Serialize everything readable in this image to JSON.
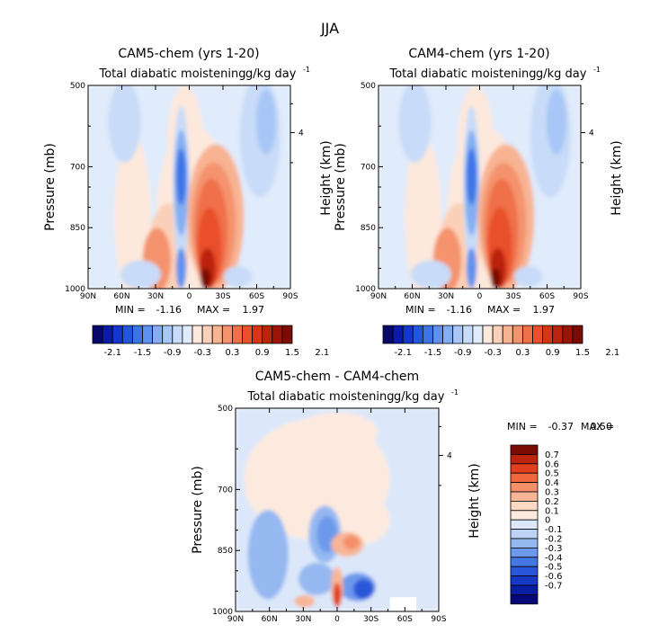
{
  "figure": {
    "title": "JJA"
  },
  "chart_data": [
    {
      "type": "heatmap",
      "title": "CAM5-chem (yrs 1-20)",
      "subtitle": "Total diabatic moistening",
      "units": "g/kg day",
      "units_exp": "-1",
      "xlabel": "",
      "ylabel": "Pressure (mb)",
      "y2label": "Height (km)",
      "xticks": [
        "90N",
        "60N",
        "30N",
        "0",
        "30S",
        "60S",
        "90S"
      ],
      "yticks": [
        "500",
        "700",
        "850",
        "1000"
      ],
      "y2ticks": [
        "4"
      ],
      "ylim": [
        500,
        1000
      ],
      "min_label": "MIN =",
      "min": "-1.16",
      "max_label": "MAX =",
      "max": "1.97",
      "features": [
        {
          "lat": 2,
          "p": 730,
          "value": -1.16
        },
        {
          "lat": -15,
          "p": 960,
          "value": 1.97
        }
      ]
    },
    {
      "type": "heatmap",
      "title": "CAM4-chem (yrs 1-20)",
      "subtitle": "Total diabatic moistening",
      "units": "g/kg day",
      "units_exp": "-1",
      "xlabel": "",
      "ylabel": "Pressure (mb)",
      "y2label": "Height (km)",
      "xticks": [
        "90N",
        "60N",
        "30N",
        "0",
        "30S",
        "60S",
        "90S"
      ],
      "yticks": [
        "500",
        "700",
        "850",
        "1000"
      ],
      "y2ticks": [
        "4"
      ],
      "ylim": [
        500,
        1000
      ],
      "min_label": "MIN =",
      "min": "-1.16",
      "max_label": "MAX =",
      "max": "1.97",
      "features": [
        {
          "lat": 3,
          "p": 760,
          "value": -1.16
        },
        {
          "lat": -15,
          "p": 960,
          "value": 1.97
        }
      ]
    },
    {
      "type": "heatmap",
      "title": "CAM5-chem - CAM4-chem",
      "subtitle": "Total diabatic moistening",
      "units": "g/kg day",
      "units_exp": "-1",
      "xlabel": "",
      "ylabel": "Pressure (mb)",
      "y2label": "Height (km)",
      "xticks": [
        "90N",
        "60N",
        "30N",
        "0",
        "30S",
        "60S",
        "90S"
      ],
      "yticks": [
        "500",
        "700",
        "850",
        "1000"
      ],
      "y2ticks": [
        "4"
      ],
      "ylim": [
        500,
        1000
      ],
      "min_label": "MIN =",
      "min": "-0.37",
      "max_label": "MAX =",
      "max": "0.50",
      "features": [
        {
          "lat": 0,
          "p": 970,
          "value": 0.5
        },
        {
          "lat": -22,
          "p": 985,
          "value": -0.37
        }
      ]
    }
  ],
  "colorbars": {
    "horizontal": {
      "colors": [
        "#08086a",
        "#0b1aa8",
        "#1336cc",
        "#2456dc",
        "#3d75e6",
        "#5e92ee",
        "#83aff2",
        "#a8c7f6",
        "#c8dbf8",
        "#e0ebfb",
        "#fde8dc",
        "#fbd0b8",
        "#f8b393",
        "#f4936d",
        "#ef7049",
        "#e9502c",
        "#d63618",
        "#bb240e",
        "#9a1508",
        "#7a0b05"
      ],
      "labels": [
        "-2.1",
        "-1.5",
        "-0.9",
        "-0.3",
        "0.3",
        "0.9",
        "1.5",
        "2.1"
      ]
    },
    "vertical": {
      "colors": [
        "#7a0b05",
        "#bb240e",
        "#e0401e",
        "#f0683e",
        "#f48f68",
        "#f8b595",
        "#fcd9c4",
        "#fdeadf",
        "#dce8fa",
        "#bcd3f6",
        "#95b8f1",
        "#6c99eb",
        "#4577e2",
        "#2a57d9",
        "#1638c4",
        "#0a1ea2",
        "#06087a"
      ],
      "labels": [
        "0.7",
        "0.6",
        "0.5",
        "0.4",
        "0.3",
        "0.2",
        "0.1",
        "0",
        "-0.1",
        "-0.2",
        "-0.3",
        "-0.4",
        "-0.5",
        "-0.6",
        "-0.7"
      ]
    }
  }
}
